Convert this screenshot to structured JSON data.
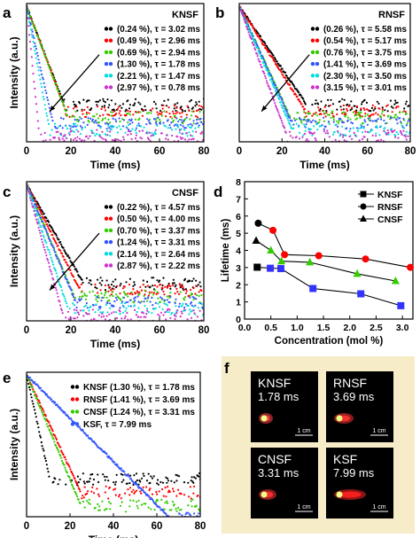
{
  "chart_data": [
    {
      "panel": "a",
      "type": "scatter",
      "title": "KNSF",
      "xlabel": "Time (ms)",
      "ylabel": "Intensity (a.u.)",
      "xlim": [
        0,
        80
      ],
      "xticks": [
        "0",
        "20",
        "40",
        "60",
        "80"
      ],
      "log_y": true,
      "series": [
        {
          "name": "(0.24 %), τ = 3.02 ms",
          "color": "#000000",
          "tau": 3.02
        },
        {
          "name": "(0.49 %), τ = 2.96 ms",
          "color": "#ff0000",
          "tau": 2.96
        },
        {
          "name": "(0.69 %), τ = 2.94 ms",
          "color": "#33cc00",
          "tau": 2.94
        },
        {
          "name": "(1.30 %), τ = 1.78 ms",
          "color": "#3355ff",
          "tau": 1.78
        },
        {
          "name": "(2.21 %), τ = 1.47 ms",
          "color": "#00dddd",
          "tau": 1.47
        },
        {
          "name": "(2.97 %), τ = 0.78 ms",
          "color": "#cc33cc",
          "tau": 0.78
        }
      ]
    },
    {
      "panel": "b",
      "type": "scatter",
      "title": "RNSF",
      "xlabel": "Time (ms)",
      "ylabel": "",
      "xlim": [
        0,
        80
      ],
      "xticks": [
        "0",
        "20",
        "40",
        "60",
        "80"
      ],
      "log_y": true,
      "series": [
        {
          "name": "(0.26 %), τ = 5.58 ms",
          "color": "#000000",
          "tau": 5.58
        },
        {
          "name": "(0.54 %), τ = 5.17 ms",
          "color": "#ff0000",
          "tau": 5.17
        },
        {
          "name": "(0.76 %), τ = 3.75 ms",
          "color": "#33cc00",
          "tau": 3.75
        },
        {
          "name": "(1.41 %), τ = 3.69 ms",
          "color": "#3355ff",
          "tau": 3.69
        },
        {
          "name": "(2.30 %), τ = 3.50 ms",
          "color": "#00dddd",
          "tau": 3.5
        },
        {
          "name": "(3.15 %), τ = 3.01 ms",
          "color": "#cc33cc",
          "tau": 3.01
        }
      ]
    },
    {
      "panel": "c",
      "type": "scatter",
      "title": "CNSF",
      "xlabel": "Time (ms)",
      "ylabel": "Intensity (a.u.)",
      "xlim": [
        0,
        80
      ],
      "xticks": [
        "0",
        "20",
        "40",
        "60",
        "80"
      ],
      "log_y": true,
      "series": [
        {
          "name": "(0.22 %), τ = 4.57 ms",
          "color": "#000000",
          "tau": 4.57
        },
        {
          "name": "(0.50 %), τ = 4.00 ms",
          "color": "#ff0000",
          "tau": 4.0
        },
        {
          "name": "(0.70 %), τ = 3.37 ms",
          "color": "#33cc00",
          "tau": 3.37
        },
        {
          "name": "(1.24 %), τ = 3.31 ms",
          "color": "#3355ff",
          "tau": 3.31
        },
        {
          "name": "(2.14 %), τ = 2.64 ms",
          "color": "#00dddd",
          "tau": 2.64
        },
        {
          "name": "(2.87 %), τ = 2.22 ms",
          "color": "#cc33cc",
          "tau": 2.22
        }
      ]
    },
    {
      "panel": "d",
      "type": "line",
      "xlabel": "Concentration (mol %)",
      "ylabel": "Lifetime (ms)",
      "xlim": [
        0,
        3.2
      ],
      "ylim": [
        0,
        8
      ],
      "xticks": [
        "0.0",
        "0.5",
        "1.0",
        "1.5",
        "2.0",
        "2.5",
        "3.0"
      ],
      "yticks": [
        "0",
        "1",
        "2",
        "3",
        "4",
        "5",
        "6",
        "7",
        "8"
      ],
      "legend_position": "top-right",
      "series": [
        {
          "name": "KNSF",
          "marker": "square",
          "marker_color": "#3333ff",
          "x": [
            0.24,
            0.49,
            0.69,
            1.3,
            2.21,
            2.97
          ],
          "y": [
            3.02,
            2.96,
            2.94,
            1.78,
            1.47,
            0.78
          ]
        },
        {
          "name": "RNSF",
          "marker": "circle",
          "marker_color": "#ff0000",
          "x": [
            0.26,
            0.54,
            0.76,
            1.41,
            2.3,
            3.15
          ],
          "y": [
            5.58,
            5.17,
            3.75,
            3.69,
            3.5,
            3.01
          ]
        },
        {
          "name": "CNSF",
          "marker": "triangle",
          "marker_color": "#33cc00",
          "x": [
            0.22,
            0.5,
            0.7,
            1.24,
            2.14,
            2.87
          ],
          "y": [
            4.57,
            4.0,
            3.37,
            3.31,
            2.64,
            2.22
          ]
        }
      ]
    },
    {
      "panel": "e",
      "type": "scatter",
      "xlabel": "Time (ms)",
      "ylabel": "Intensity (a.u.)",
      "xlim": [
        0,
        80
      ],
      "xticks": [
        "0",
        "20",
        "40",
        "60",
        "80"
      ],
      "log_y": true,
      "series": [
        {
          "name": "KNSF (1.30 %), τ = 1.78 ms",
          "color": "#000000",
          "tau": 1.78
        },
        {
          "name": "RNSF (1.41 %), τ = 3.69 ms",
          "color": "#ff0000",
          "tau": 3.69
        },
        {
          "name": "CNSF (1.24 %), τ = 3.31 ms",
          "color": "#33cc00",
          "tau": 3.31
        },
        {
          "name": "KSF, τ = 7.99 ms",
          "color": "#3355ff",
          "tau": 7.99
        }
      ]
    }
  ],
  "photos": {
    "label": "f",
    "background": "#f6edc8",
    "scale_bar": "1 cm",
    "tiles": [
      {
        "name": "KNSF",
        "lifetime": "1.78 ms",
        "glow_color": "#ff4444"
      },
      {
        "name": "RNSF",
        "lifetime": "3.69 ms",
        "glow_color": "#ff3333"
      },
      {
        "name": "CNSF",
        "lifetime": "3.31 ms",
        "glow_color": "#ff3333"
      },
      {
        "name": "KSF",
        "lifetime": "7.99 ms",
        "glow_color": "#ff2222"
      }
    ]
  }
}
